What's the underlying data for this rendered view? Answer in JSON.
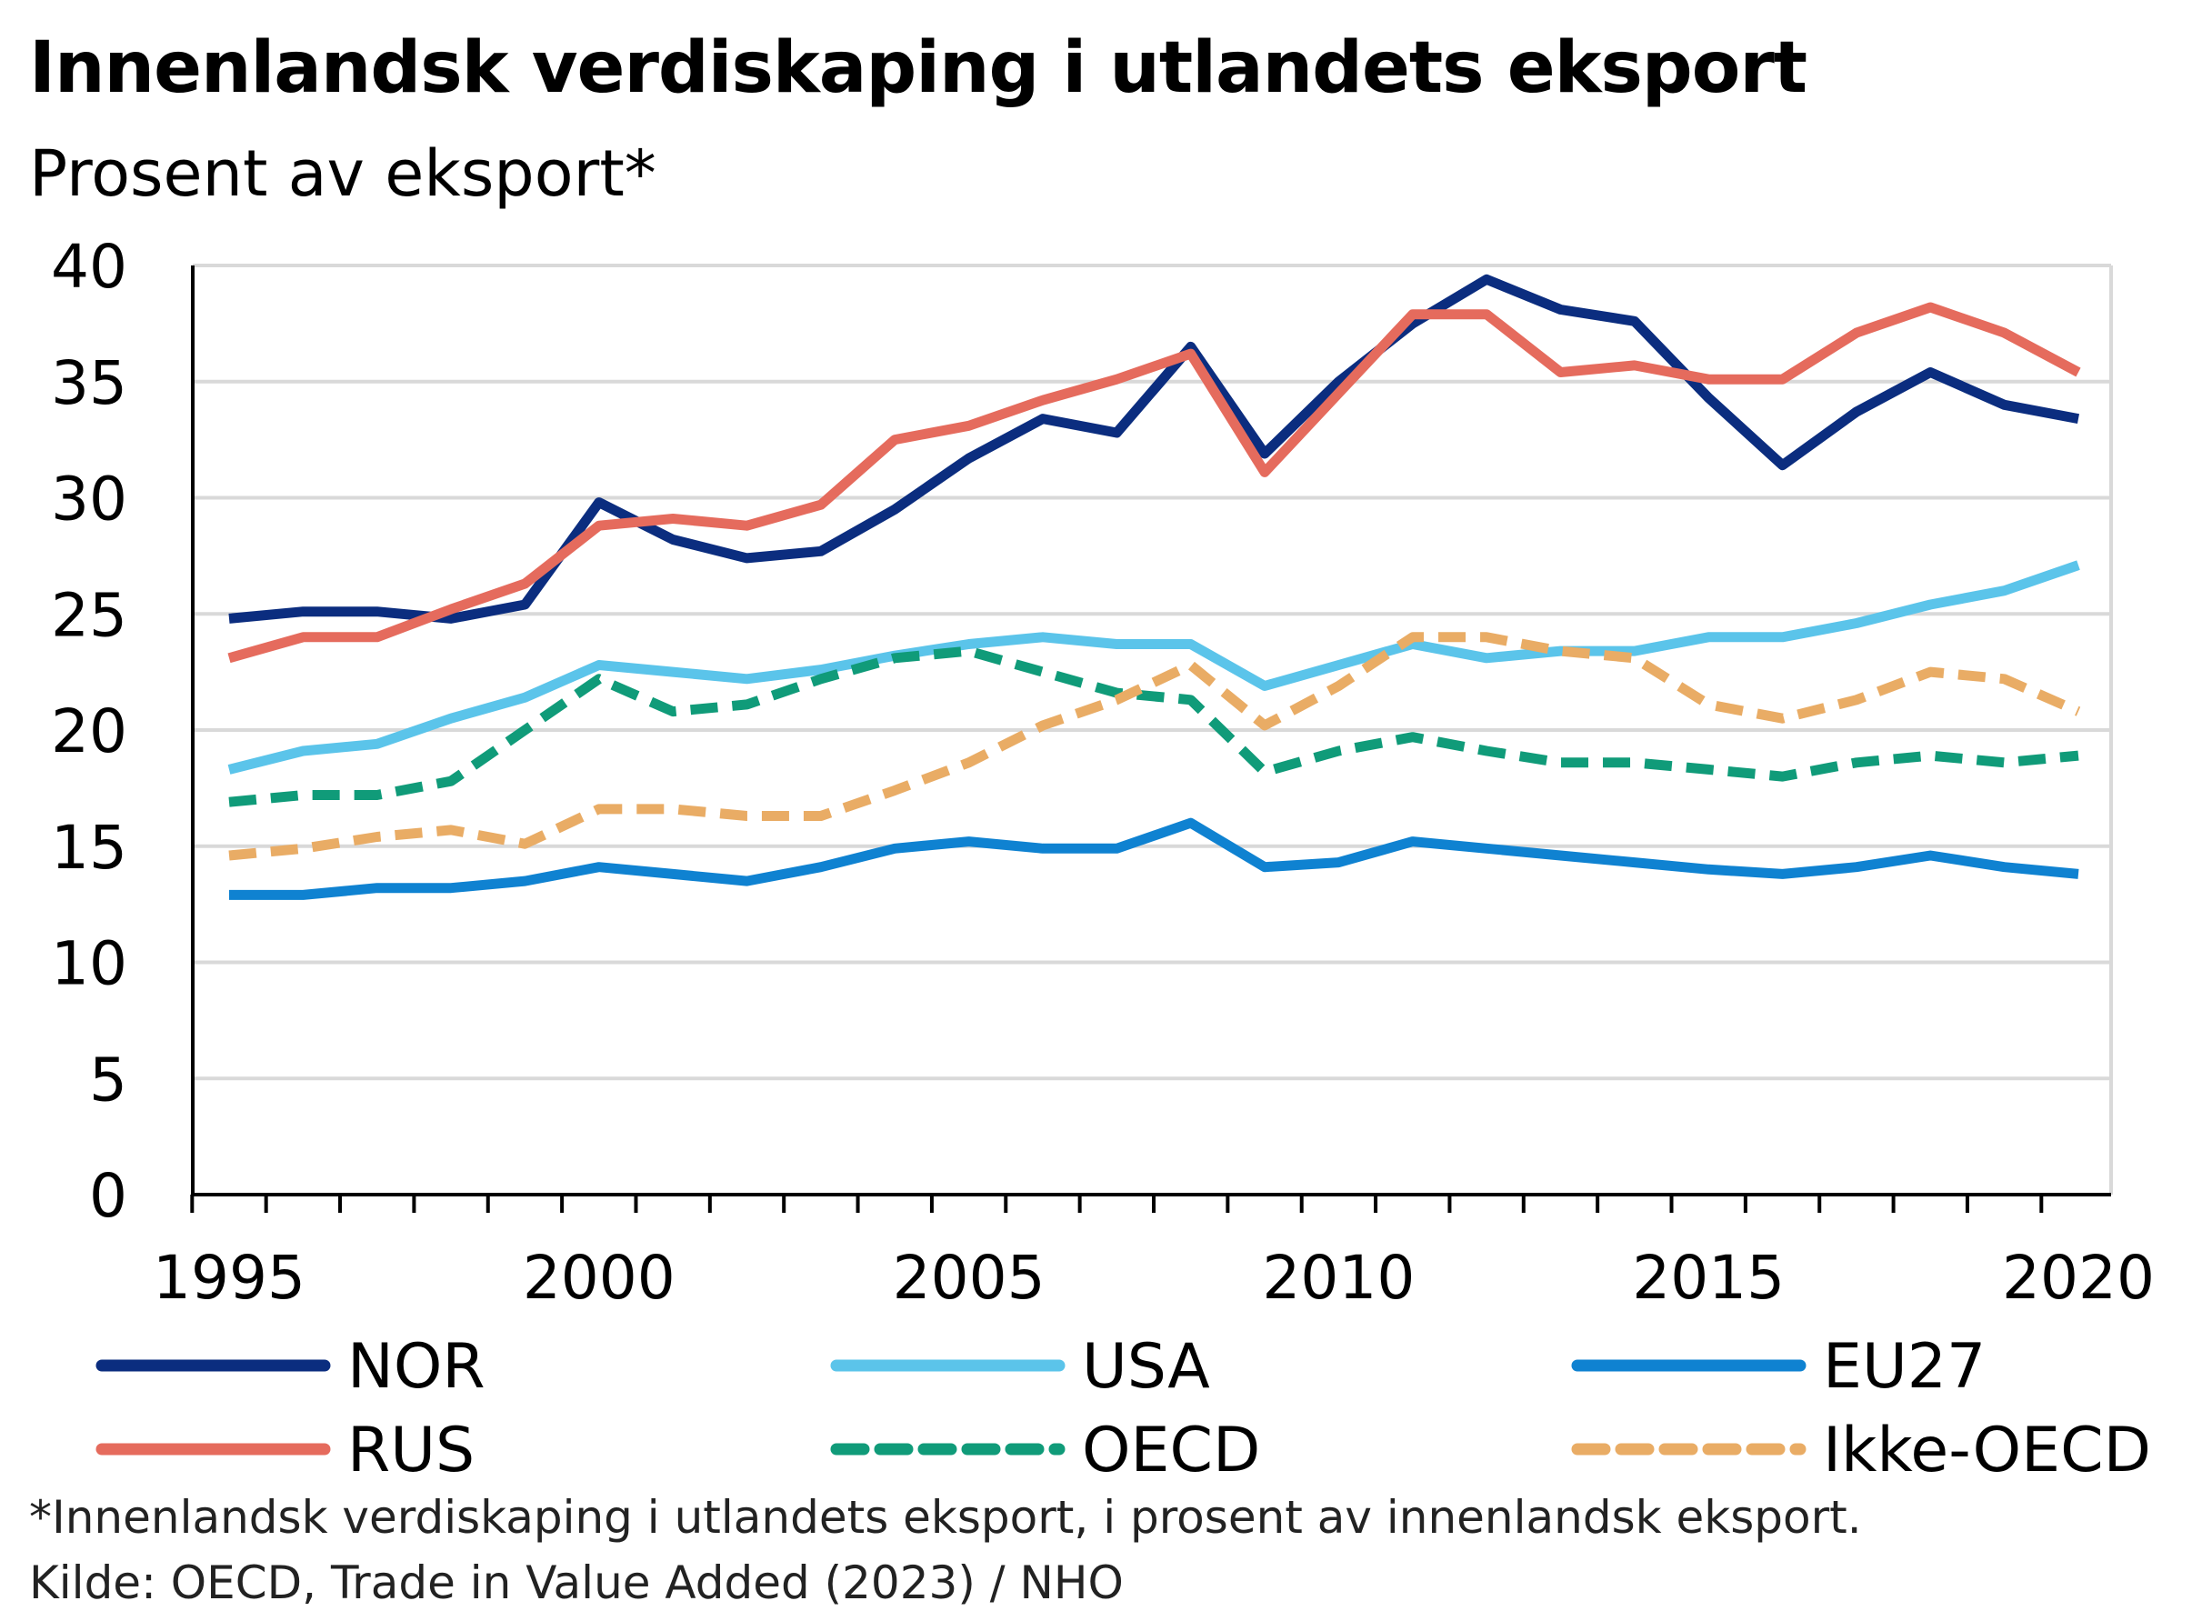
{
  "chart_data": {
    "type": "line",
    "title": "Innenlandsk verdiskaping i utlandets eksport",
    "subtitle": "Prosent av eksport*",
    "xlabel": "",
    "ylabel": "",
    "ylim": [
      0,
      40
    ],
    "yticks": [
      "0",
      "5",
      "10",
      "15",
      "20",
      "25",
      "30",
      "35",
      "40"
    ],
    "xlim": [
      1995,
      2020
    ],
    "xticks": [
      "1995",
      "2000",
      "2005",
      "2010",
      "2015",
      "2020"
    ],
    "grid": true,
    "legend_position": "bottom",
    "x": [
      1995,
      1996,
      1997,
      1998,
      1999,
      2000,
      2001,
      2002,
      2003,
      2004,
      2005,
      2006,
      2007,
      2008,
      2009,
      2010,
      2011,
      2012,
      2013,
      2014,
      2015,
      2016,
      2017,
      2018,
      2019,
      2020
    ],
    "series": [
      {
        "name": "NOR",
        "color": "#0b2d7f",
        "dashed": false,
        "values": [
          24.8,
          25.1,
          25.1,
          24.8,
          25.4,
          29.8,
          28.2,
          27.4,
          27.7,
          29.5,
          31.7,
          33.4,
          32.8,
          36.5,
          31.9,
          35.0,
          37.5,
          39.4,
          38.1,
          37.6,
          34.3,
          31.4,
          33.7,
          35.4,
          34.0,
          33.4
        ]
      },
      {
        "name": "USA",
        "color": "#5bc4ea",
        "dashed": false,
        "values": [
          18.3,
          19.1,
          19.4,
          20.5,
          21.4,
          22.8,
          22.5,
          22.2,
          22.6,
          23.2,
          23.7,
          24.0,
          23.7,
          23.7,
          21.9,
          22.8,
          23.7,
          23.1,
          23.4,
          23.4,
          24.0,
          24.0,
          24.6,
          25.4,
          26.0,
          27.1
        ]
      },
      {
        "name": "EU27",
        "color": "#0f82d1",
        "dashed": false,
        "values": [
          12.9,
          12.9,
          13.2,
          13.2,
          13.5,
          14.1,
          13.8,
          13.5,
          14.1,
          14.9,
          15.2,
          14.9,
          14.9,
          16.0,
          14.1,
          14.3,
          15.2,
          14.9,
          14.6,
          14.3,
          14.0,
          13.8,
          14.1,
          14.6,
          14.1,
          13.8
        ]
      },
      {
        "name": "RUS",
        "color": "#e56b5d",
        "dashed": false,
        "values": [
          23.1,
          24.0,
          24.0,
          25.2,
          26.3,
          28.8,
          29.1,
          28.8,
          29.7,
          32.5,
          33.1,
          34.2,
          35.1,
          36.2,
          31.1,
          34.5,
          37.9,
          37.9,
          35.4,
          35.7,
          35.1,
          35.1,
          37.1,
          38.2,
          37.1,
          35.4
        ]
      },
      {
        "name": "OECD",
        "color": "#109b79",
        "dashed": true,
        "values": [
          16.9,
          17.2,
          17.2,
          17.8,
          20.0,
          22.2,
          20.8,
          21.1,
          22.2,
          23.1,
          23.4,
          22.5,
          21.6,
          21.3,
          18.2,
          19.1,
          19.7,
          19.1,
          18.6,
          18.6,
          18.3,
          18.0,
          18.6,
          18.9,
          18.6,
          18.9
        ]
      },
      {
        "name": "Ikke-OECD",
        "color": "#e9ac65",
        "dashed": true,
        "values": [
          14.6,
          14.9,
          15.4,
          15.7,
          15.1,
          16.6,
          16.6,
          16.3,
          16.3,
          17.4,
          18.6,
          20.2,
          21.3,
          22.8,
          20.2,
          21.9,
          24.0,
          24.0,
          23.4,
          23.1,
          21.1,
          20.5,
          21.3,
          22.5,
          22.2,
          20.8
        ]
      }
    ],
    "footnote": "*Innenlandsk verdiskaping i utlandets eksport, i prosent av innenlandsk eksport.",
    "source": "Kilde: OECD, Trade in Value Added (2023) / NHO"
  }
}
